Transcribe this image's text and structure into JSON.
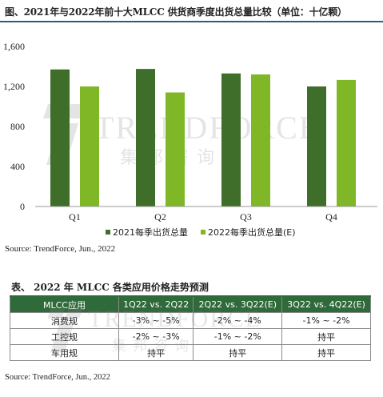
{
  "figure": {
    "title": "图、2021年与2022年前十大MLCC 供货商季度出货总量比较（单位：十亿颗）",
    "source": "Source: TrendForce, Jun., 2022"
  },
  "watermark": {
    "brand": "TRENDFORCE",
    "brand_cn": "集邦咨询"
  },
  "colors": {
    "series_2021": "#3f6e2b",
    "series_2022": "#7fb726",
    "table_header": "#2f6a3a"
  },
  "chart_data": {
    "type": "bar",
    "categories": [
      "Q1",
      "Q2",
      "Q3",
      "Q4"
    ],
    "series": [
      {
        "name": "2021每季出货总量",
        "values": [
          1370,
          1375,
          1330,
          1200
        ]
      },
      {
        "name": "2022每季出货总量(E)",
        "values": [
          1200,
          1140,
          1320,
          1265
        ]
      }
    ],
    "ylim": [
      0,
      1600
    ],
    "yticks": [
      "0",
      "400",
      "800",
      "1,200",
      "1,600"
    ],
    "ytick_values": [
      0,
      400,
      800,
      1200,
      1600
    ],
    "legend_position": "bottom-right",
    "grid": false
  },
  "table": {
    "title": "表、 2022 年 MLCC 各类应用价格走势预测",
    "headers": [
      "MLCC应用",
      "1Q22 vs. 2Q22",
      "2Q22 vs. 3Q22(E)",
      "3Q22 vs. 4Q22(E)"
    ],
    "rows": [
      {
        "label": "消费规",
        "cells": [
          "-3% ~ -5%",
          "-2% ~ -4%",
          "-1% ~ -2%"
        ]
      },
      {
        "label": "工控规",
        "cells": [
          "-2% ~ -3%",
          "-1% ~ -2%",
          "持平"
        ]
      },
      {
        "label": "车用规",
        "cells": [
          "持平",
          "持平",
          "持平"
        ]
      }
    ],
    "source": "Source: TrendForce, Jun., 2022"
  }
}
